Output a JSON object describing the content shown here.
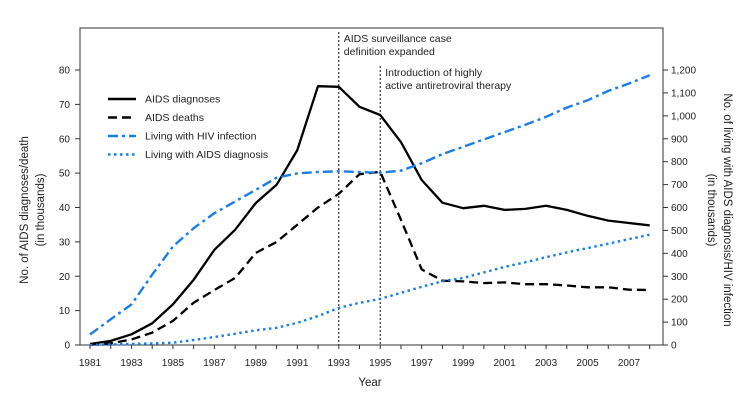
{
  "chart_data": {
    "type": "line",
    "xlabel": "Year",
    "ylabel_left": "No. of AIDS diagnoses/death",
    "ylabel_left_sub": "(in thousands)",
    "ylabel_right": "No. of living with AIDS diagnosis/HIV infection",
    "ylabel_right_sub": "(in thousands)",
    "x": [
      1981,
      1982,
      1983,
      1984,
      1985,
      1986,
      1987,
      1988,
      1989,
      1990,
      1991,
      1992,
      1993,
      1994,
      1995,
      1996,
      1997,
      1998,
      1999,
      2000,
      2001,
      2002,
      2003,
      2004,
      2005,
      2006,
      2007,
      2008
    ],
    "x_tick_labels": [
      "1981",
      "1983",
      "1985",
      "1987",
      "1989",
      "1991",
      "1993",
      "1995",
      "1997",
      "1999",
      "2001",
      "2003",
      "2005",
      "2007"
    ],
    "ylim_left": [
      0,
      80
    ],
    "y_left_tick_labels": [
      "0",
      "10",
      "20",
      "30",
      "40",
      "50",
      "60",
      "70",
      "80"
    ],
    "ylim_right": [
      0,
      1200
    ],
    "y_right_tick_labels": [
      "0",
      "100",
      "200",
      "300",
      "400",
      "500",
      "600",
      "700",
      "800",
      "900",
      "1,000",
      "1,100",
      "1,200"
    ],
    "grid": false,
    "legend_placement": "upper-left",
    "series": [
      {
        "name": "AIDS diagnoses",
        "axis": "left",
        "style": "solid",
        "color": "#000000",
        "values": [
          0.3,
          1.2,
          3.1,
          6.3,
          11.8,
          19,
          27.7,
          33.5,
          41.3,
          46.6,
          56.7,
          75.3,
          75.1,
          69.3,
          66.9,
          59,
          48,
          41.4,
          39.8,
          40.5,
          39.3,
          39.6,
          40.5,
          39.3,
          37.6,
          36.2,
          35.5,
          34.8
        ]
      },
      {
        "name": "AIDS deaths",
        "axis": "left",
        "style": "dashed",
        "color": "#000000",
        "values": [
          0.1,
          0.5,
          1.6,
          3.6,
          7,
          12.3,
          16,
          19.5,
          26.8,
          30,
          35,
          40,
          44,
          49.7,
          50.4,
          36.4,
          22,
          18.7,
          18.5,
          18,
          18.2,
          17.7,
          17.7,
          17.3,
          16.8,
          16.8,
          16.1,
          16
        ]
      },
      {
        "name": "Living with HIV infection",
        "axis": "right",
        "style": "dash-dot",
        "color": "#1a7ee6",
        "values": [
          46,
          112,
          177,
          307,
          430,
          510,
          575,
          626,
          677,
          730,
          749,
          755,
          758,
          755,
          752,
          761,
          793,
          833,
          865,
          897,
          929,
          961,
          996,
          1036,
          1068,
          1109,
          1141,
          1177
        ]
      },
      {
        "name": "Living with AIDS diagnosis",
        "axis": "right",
        "style": "dotted",
        "color": "#1a7ee6",
        "values": [
          0,
          2,
          5,
          7,
          10,
          22,
          35,
          49,
          64,
          75,
          97,
          126,
          162,
          184,
          201,
          228,
          254,
          278,
          293,
          317,
          341,
          361,
          383,
          404,
          423,
          442,
          462,
          481
        ]
      }
    ],
    "annotations": [
      {
        "x": 1993,
        "lines": [
          "AIDS surveillance case",
          "definition expanded"
        ]
      },
      {
        "x": 1995,
        "lines": [
          "Introduction of highly",
          "active antiretroviral therapy"
        ]
      }
    ]
  }
}
